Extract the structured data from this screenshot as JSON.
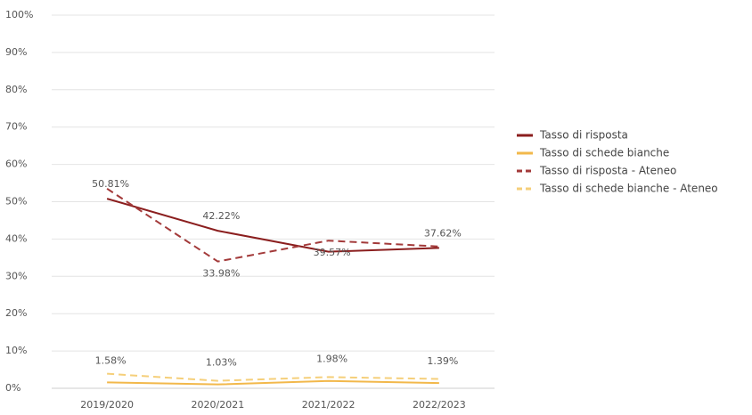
{
  "chart_data": {
    "type": "line",
    "categories": [
      "2019/2020",
      "2020/2021",
      "2021/2022",
      "2022/2023"
    ],
    "series": [
      {
        "name": "Tasso di risposta",
        "color": "#8b1e1e",
        "dash": false,
        "values": [
          50.81,
          42.22,
          36.6,
          37.62
        ],
        "value_labels": [
          "50.81%",
          "42.22%",
          null,
          "37.62%"
        ]
      },
      {
        "name": "Tasso di schede bianche",
        "color": "#f2b84b",
        "dash": false,
        "values": [
          1.58,
          1.03,
          1.98,
          1.39
        ],
        "value_labels": [
          "1.58%",
          "1.03%",
          "1.98%",
          "1.39%"
        ]
      },
      {
        "name": "Tasso di risposta - Ateneo",
        "color": "#a33a3a",
        "dash": true,
        "values": [
          53.5,
          33.98,
          39.57,
          38.0
        ],
        "value_labels": [
          null,
          "33.98%",
          "39.57%",
          null
        ]
      },
      {
        "name": "Tasso di schede bianche - Ateneo",
        "color": "#f5cf7a",
        "dash": true,
        "values": [
          3.9,
          2.0,
          3.0,
          2.5
        ],
        "value_labels": [
          null,
          null,
          null,
          null
        ]
      }
    ],
    "ylim": [
      0,
      100
    ],
    "yticks": [
      {
        "value": 0,
        "label": "0%"
      },
      {
        "value": 10,
        "label": "10%"
      },
      {
        "value": 20,
        "label": "20%"
      },
      {
        "value": 30,
        "label": "30%"
      },
      {
        "value": 40,
        "label": "40%"
      },
      {
        "value": 50,
        "label": "50%"
      },
      {
        "value": 60,
        "label": "60%"
      },
      {
        "value": 70,
        "label": "70%"
      },
      {
        "value": 80,
        "label": "80%"
      },
      {
        "value": 90,
        "label": "90%"
      },
      {
        "value": 100,
        "label": "100%"
      }
    ],
    "grid": true,
    "legend": "right"
  }
}
